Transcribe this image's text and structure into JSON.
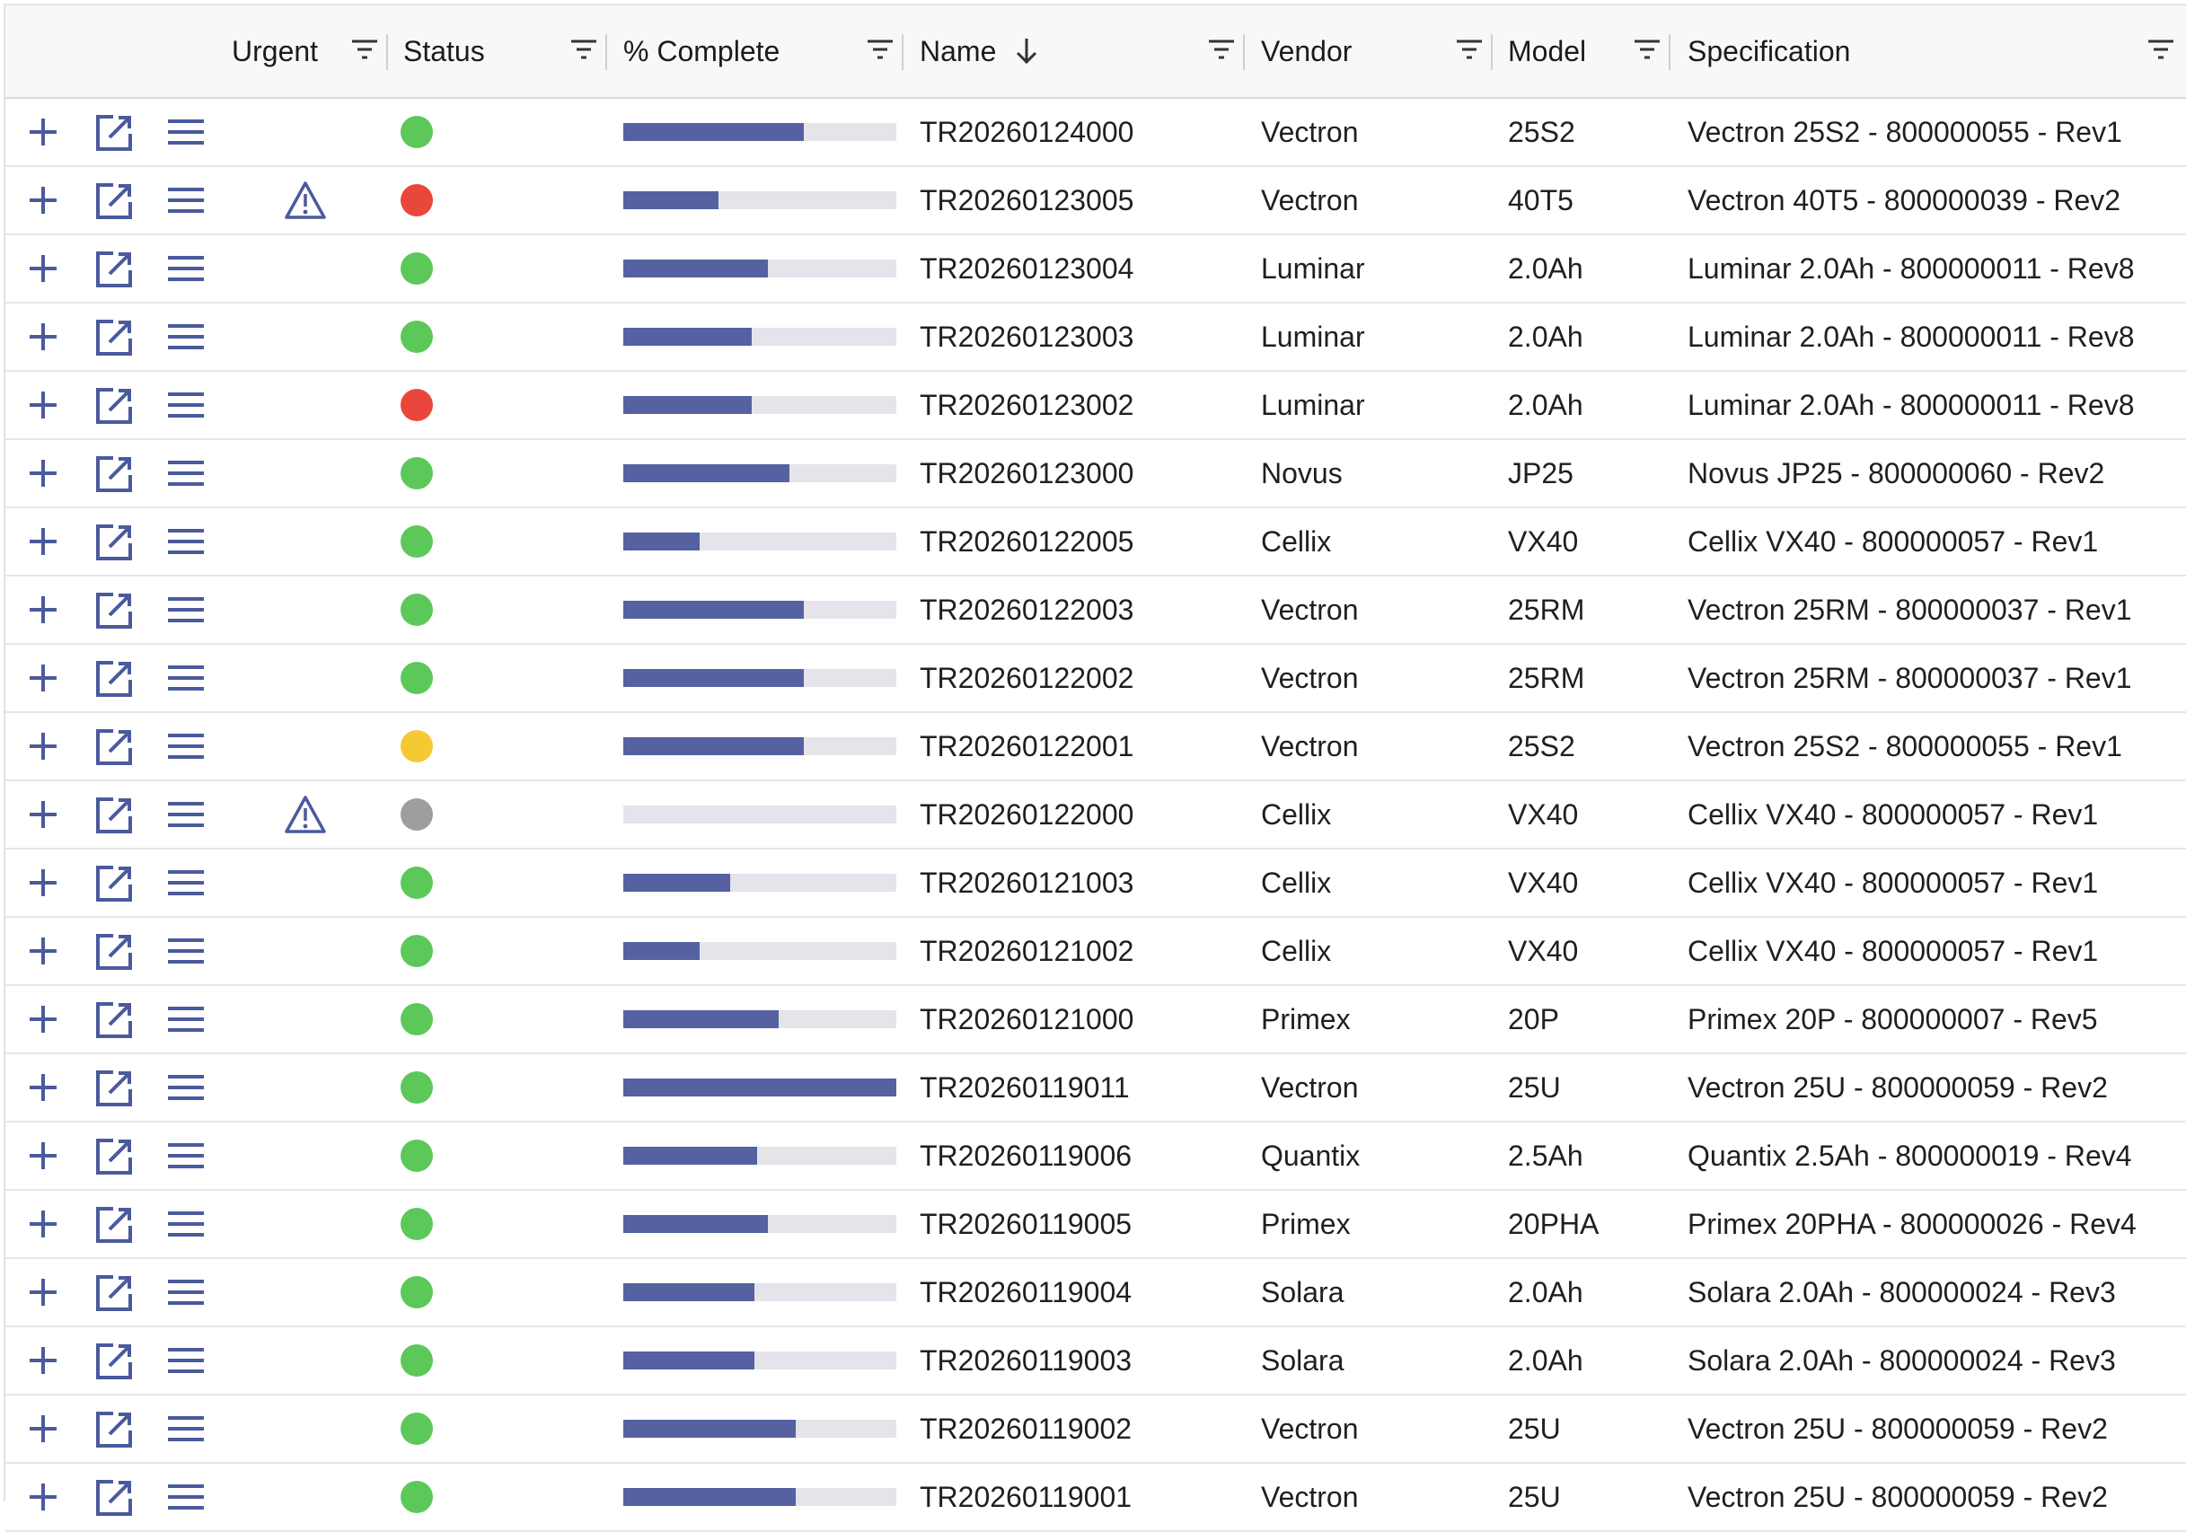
{
  "colors": {
    "accent": "#4a5a9c",
    "progress_fill": "#5561a0",
    "progress_track": "#e4e4ea",
    "status_green": "#5cc85a",
    "status_red": "#e9473c",
    "status_yellow": "#f4c934",
    "status_gray": "#9e9e9e"
  },
  "icons": {
    "add": "plus-icon",
    "edit": "open-in-new-icon",
    "menu": "hamburger-menu-icon",
    "urgent": "warning-triangle-icon",
    "filter": "filter-icon",
    "sort": "arrow-down-icon"
  },
  "columns": {
    "urgent": "Urgent",
    "status": "Status",
    "complete": "% Complete",
    "name": "Name",
    "vendor": "Vendor",
    "model": "Model",
    "specification": "Specification"
  },
  "sort": {
    "column": "Name",
    "direction": "descending"
  },
  "rows": [
    {
      "urgent": false,
      "status": "green",
      "complete": 66,
      "name": "TR20260124000",
      "vendor": "Vectron",
      "model": "25S2",
      "specification": "Vectron 25S2 - 800000055 - Rev1"
    },
    {
      "urgent": true,
      "status": "red",
      "complete": 35,
      "name": "TR20260123005",
      "vendor": "Vectron",
      "model": "40T5",
      "specification": "Vectron 40T5 - 800000039 - Rev2"
    },
    {
      "urgent": false,
      "status": "green",
      "complete": 53,
      "name": "TR20260123004",
      "vendor": "Luminar",
      "model": "2.0Ah",
      "specification": "Luminar 2.0Ah - 800000011 - Rev8"
    },
    {
      "urgent": false,
      "status": "green",
      "complete": 47,
      "name": "TR20260123003",
      "vendor": "Luminar",
      "model": "2.0Ah",
      "specification": "Luminar 2.0Ah - 800000011 - Rev8"
    },
    {
      "urgent": false,
      "status": "red",
      "complete": 47,
      "name": "TR20260123002",
      "vendor": "Luminar",
      "model": "2.0Ah",
      "specification": "Luminar 2.0Ah - 800000011 - Rev8"
    },
    {
      "urgent": false,
      "status": "green",
      "complete": 61,
      "name": "TR20260123000",
      "vendor": "Novus",
      "model": "JP25",
      "specification": "Novus JP25 - 800000060 - Rev2"
    },
    {
      "urgent": false,
      "status": "green",
      "complete": 28,
      "name": "TR20260122005",
      "vendor": "Cellix",
      "model": "VX40",
      "specification": "Cellix VX40 - 800000057 - Rev1"
    },
    {
      "urgent": false,
      "status": "green",
      "complete": 66,
      "name": "TR20260122003",
      "vendor": "Vectron",
      "model": "25RM",
      "specification": "Vectron 25RM - 800000037 - Rev1"
    },
    {
      "urgent": false,
      "status": "green",
      "complete": 66,
      "name": "TR20260122002",
      "vendor": "Vectron",
      "model": "25RM",
      "specification": "Vectron 25RM - 800000037 - Rev1"
    },
    {
      "urgent": false,
      "status": "yellow",
      "complete": 66,
      "name": "TR20260122001",
      "vendor": "Vectron",
      "model": "25S2",
      "specification": "Vectron 25S2 - 800000055 - Rev1"
    },
    {
      "urgent": true,
      "status": "gray",
      "complete": 0,
      "name": "TR20260122000",
      "vendor": "Cellix",
      "model": "VX40",
      "specification": "Cellix VX40 - 800000057 - Rev1"
    },
    {
      "urgent": false,
      "status": "green",
      "complete": 39,
      "name": "TR20260121003",
      "vendor": "Cellix",
      "model": "VX40",
      "specification": "Cellix VX40 - 800000057 - Rev1"
    },
    {
      "urgent": false,
      "status": "green",
      "complete": 28,
      "name": "TR20260121002",
      "vendor": "Cellix",
      "model": "VX40",
      "specification": "Cellix VX40 - 800000057 - Rev1"
    },
    {
      "urgent": false,
      "status": "green",
      "complete": 57,
      "name": "TR20260121000",
      "vendor": "Primex",
      "model": "20P",
      "specification": "Primex 20P - 800000007 - Rev5"
    },
    {
      "urgent": false,
      "status": "green",
      "complete": 100,
      "name": "TR20260119011",
      "vendor": "Vectron",
      "model": "25U",
      "specification": "Vectron 25U - 800000059 - Rev2"
    },
    {
      "urgent": false,
      "status": "green",
      "complete": 49,
      "name": "TR20260119006",
      "vendor": "Quantix",
      "model": "2.5Ah",
      "specification": "Quantix 2.5Ah - 800000019 - Rev4"
    },
    {
      "urgent": false,
      "status": "green",
      "complete": 53,
      "name": "TR20260119005",
      "vendor": "Primex",
      "model": "20PHA",
      "specification": "Primex 20PHA - 800000026 - Rev4"
    },
    {
      "urgent": false,
      "status": "green",
      "complete": 48,
      "name": "TR20260119004",
      "vendor": "Solara",
      "model": "2.0Ah",
      "specification": "Solara 2.0Ah - 800000024 - Rev3"
    },
    {
      "urgent": false,
      "status": "green",
      "complete": 48,
      "name": "TR20260119003",
      "vendor": "Solara",
      "model": "2.0Ah",
      "specification": "Solara 2.0Ah - 800000024 - Rev3"
    },
    {
      "urgent": false,
      "status": "green",
      "complete": 63,
      "name": "TR20260119002",
      "vendor": "Vectron",
      "model": "25U",
      "specification": "Vectron 25U - 800000059 - Rev2"
    },
    {
      "urgent": false,
      "status": "green",
      "complete": 63,
      "name": "TR20260119001",
      "vendor": "Vectron",
      "model": "25U",
      "specification": "Vectron 25U - 800000059 - Rev2"
    }
  ]
}
